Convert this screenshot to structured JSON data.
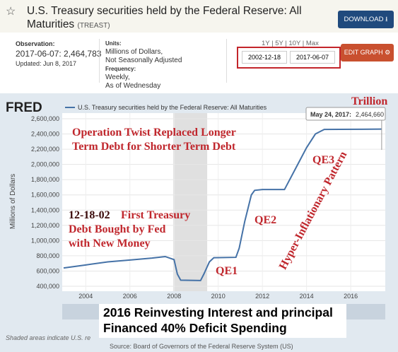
{
  "header": {
    "title": "U.S. Treasury securities held by the Federal Reserve: All Maturities",
    "series_id": "(TREAST)",
    "download": "DOWNLOAD",
    "observation_label": "Observation:",
    "observation": "2017-06-07: 2,464,783",
    "updated": "Updated: Jun 8, 2017",
    "units_label": "Units:",
    "units": [
      "Millions of Dollars,",
      "Not Seasonally Adjusted"
    ],
    "frequency_label": "Frequency:",
    "frequency": [
      "Weekly,",
      "As of Wednesday"
    ],
    "ranges": "1Y | 5Y | 10Y | Max",
    "start_date": "2002-12-18",
    "end_date": "2017-06-07",
    "edit_graph": "EDIT GRAPH"
  },
  "chart_data": {
    "type": "line",
    "logo": "FRED",
    "ylabel": "Millions of Dollars",
    "x": [
      2003,
      2004,
      2005,
      2006,
      2007,
      2007.6,
      2008,
      2008.15,
      2008.3,
      2009.2,
      2009.35,
      2009.6,
      2009.8,
      2010.8,
      2010.95,
      2011.2,
      2011.5,
      2011.65,
      2012,
      2013,
      2013.2,
      2013.6,
      2014,
      2014.4,
      2014.8,
      2015.5,
      2016.5,
      2017.4
    ],
    "series": [
      {
        "name": "U.S. Treasury securities held by the Federal Reserve: All Maturities",
        "color": "#4572a7",
        "values": [
          640000,
          680000,
          720000,
          745000,
          770000,
          790000,
          750000,
          560000,
          480000,
          475000,
          560000,
          720000,
          775000,
          780000,
          900000,
          1250000,
          1600000,
          1660000,
          1670000,
          1670000,
          1780000,
          2000000,
          2220000,
          2400000,
          2460000,
          2461000,
          2462000,
          2464660
        ]
      }
    ],
    "xlim": [
      2003,
      2017.5
    ],
    "xticks": [
      2004,
      2006,
      2008,
      2010,
      2012,
      2014,
      2016
    ],
    "ylim": [
      400000,
      2600000
    ],
    "yticks": [
      {
        "value": 400000,
        "label": "400,000"
      },
      {
        "value": 600000,
        "label": "600,000"
      },
      {
        "value": 800000,
        "label": "800,000"
      },
      {
        "value": 1000000,
        "label": "1,000,000"
      },
      {
        "value": 1200000,
        "label": "1,200,000"
      },
      {
        "value": 1400000,
        "label": "1,400,000"
      },
      {
        "value": 1600000,
        "label": "1,600,000"
      },
      {
        "value": 1800000,
        "label": "1,800,000"
      },
      {
        "value": 2000000,
        "label": "2,000,000"
      },
      {
        "value": 2200000,
        "label": "2,200,000"
      },
      {
        "value": 2400000,
        "label": "2,400,000"
      },
      {
        "value": 2600000,
        "label": "2,600,000"
      }
    ],
    "grid": true,
    "recessions": [
      [
        2007.96,
        2009.5
      ]
    ],
    "tooltip": {
      "date": "May 24, 2017:",
      "value": "2,464,660"
    },
    "annotations": [
      "Trillion",
      "Operation Twist Replaced Longer",
      "Term Debt for Shorter Term Debt",
      "QE3",
      "Hyper-Inflationary Pattern",
      "QE2",
      "QE1",
      "12-18-02",
      "First Treasury",
      "Debt Bought by Fed",
      "with New Money"
    ],
    "box_note": [
      "2016 Reinvesting Interest and principal",
      "Financed 40% Deficit Spending"
    ],
    "recession_note": "Shaded areas indicate U.S. re",
    "source": "Source: Board of Governors of the Federal Reserve System (US)"
  }
}
